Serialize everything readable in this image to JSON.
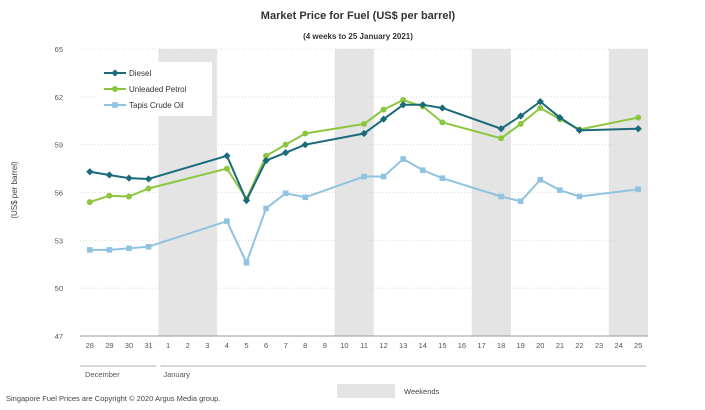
{
  "chart_data": {
    "type": "line",
    "title": "Market Price for Fuel (US$ per barrel)",
    "subtitle": "(4 weeks to 25 January 2021)",
    "ylabel": "(US$ per barrel)",
    "ylim": [
      47,
      65
    ],
    "yticks": [
      47,
      50,
      53,
      56,
      59,
      62,
      65
    ],
    "x_labels": [
      "28",
      "29",
      "30",
      "31",
      "1",
      "2",
      "3",
      "4",
      "5",
      "6",
      "7",
      "8",
      "9",
      "10",
      "11",
      "12",
      "13",
      "14",
      "15",
      "16",
      "17",
      "18",
      "19",
      "20",
      "21",
      "22",
      "23",
      "24",
      "25"
    ],
    "month_labels": [
      {
        "label": "December",
        "start": 0,
        "end": 3
      },
      {
        "label": "January",
        "start": 4,
        "end": 28
      }
    ],
    "weekend_bands": [
      [
        4,
        6
      ],
      [
        13,
        14
      ],
      [
        20,
        21
      ],
      [
        27,
        28
      ]
    ],
    "weekend_label": "Weekends",
    "grid": true,
    "legend_position": "top-left",
    "series": [
      {
        "name": "Diesel",
        "color": "#1a6a7a",
        "marker": "diamond",
        "points": [
          [
            0,
            57.3
          ],
          [
            1,
            57.1
          ],
          [
            2,
            56.9
          ],
          [
            3,
            56.85
          ],
          [
            7,
            58.3
          ],
          [
            8,
            55.5
          ],
          [
            9,
            58.0
          ],
          [
            10,
            58.5
          ],
          [
            11,
            59.0
          ],
          [
            14,
            59.7
          ],
          [
            15,
            60.6
          ],
          [
            16,
            61.5
          ],
          [
            17,
            61.5
          ],
          [
            18,
            61.3
          ],
          [
            21,
            60.0
          ],
          [
            22,
            60.8
          ],
          [
            23,
            61.7
          ],
          [
            24,
            60.7
          ],
          [
            25,
            59.9
          ],
          [
            28,
            60.0
          ]
        ]
      },
      {
        "name": "Unleaded Petrol",
        "color": "#8cc63f",
        "marker": "circle",
        "points": [
          [
            0,
            55.4
          ],
          [
            1,
            55.8
          ],
          [
            2,
            55.75
          ],
          [
            3,
            56.25
          ],
          [
            7,
            57.5
          ],
          [
            8,
            55.6
          ],
          [
            9,
            58.3
          ],
          [
            10,
            59.0
          ],
          [
            11,
            59.7
          ],
          [
            14,
            60.3
          ],
          [
            15,
            61.2
          ],
          [
            16,
            61.8
          ],
          [
            17,
            61.4
          ],
          [
            18,
            60.4
          ],
          [
            21,
            59.4
          ],
          [
            22,
            60.3
          ],
          [
            23,
            61.3
          ],
          [
            24,
            60.6
          ],
          [
            25,
            59.95
          ],
          [
            28,
            60.7
          ]
        ]
      },
      {
        "name": "Tapis Crude Oil",
        "color": "#8fc3e0",
        "marker": "square",
        "points": [
          [
            0,
            52.4
          ],
          [
            1,
            52.4
          ],
          [
            2,
            52.5
          ],
          [
            3,
            52.6
          ],
          [
            7,
            54.2
          ],
          [
            8,
            51.6
          ],
          [
            9,
            55.0
          ],
          [
            10,
            55.95
          ],
          [
            11,
            55.7
          ],
          [
            14,
            57.0
          ],
          [
            15,
            57.0
          ],
          [
            16,
            58.1
          ],
          [
            17,
            57.4
          ],
          [
            18,
            56.9
          ],
          [
            21,
            55.75
          ],
          [
            22,
            55.45
          ],
          [
            23,
            56.8
          ],
          [
            24,
            56.15
          ],
          [
            25,
            55.75
          ],
          [
            28,
            56.2
          ]
        ]
      }
    ]
  },
  "footer": {
    "copyright": "Singapore Fuel Prices are Copyright © 2020 Argus Media group."
  }
}
